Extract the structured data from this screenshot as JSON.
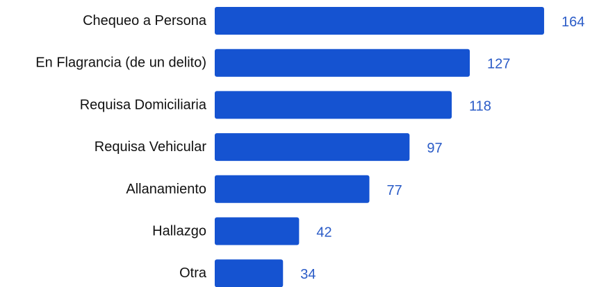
{
  "chart_data": {
    "type": "bar",
    "orientation": "horizontal",
    "categories": [
      "Chequeo a Persona",
      "En Flagrancia (de un delito)",
      "Requisa Domiciliaria",
      "Requisa Vehicular",
      "Allanamiento",
      "Hallazgo",
      "Otra"
    ],
    "values": [
      164,
      127,
      118,
      97,
      77,
      42,
      34
    ],
    "color": "#1553d1"
  }
}
